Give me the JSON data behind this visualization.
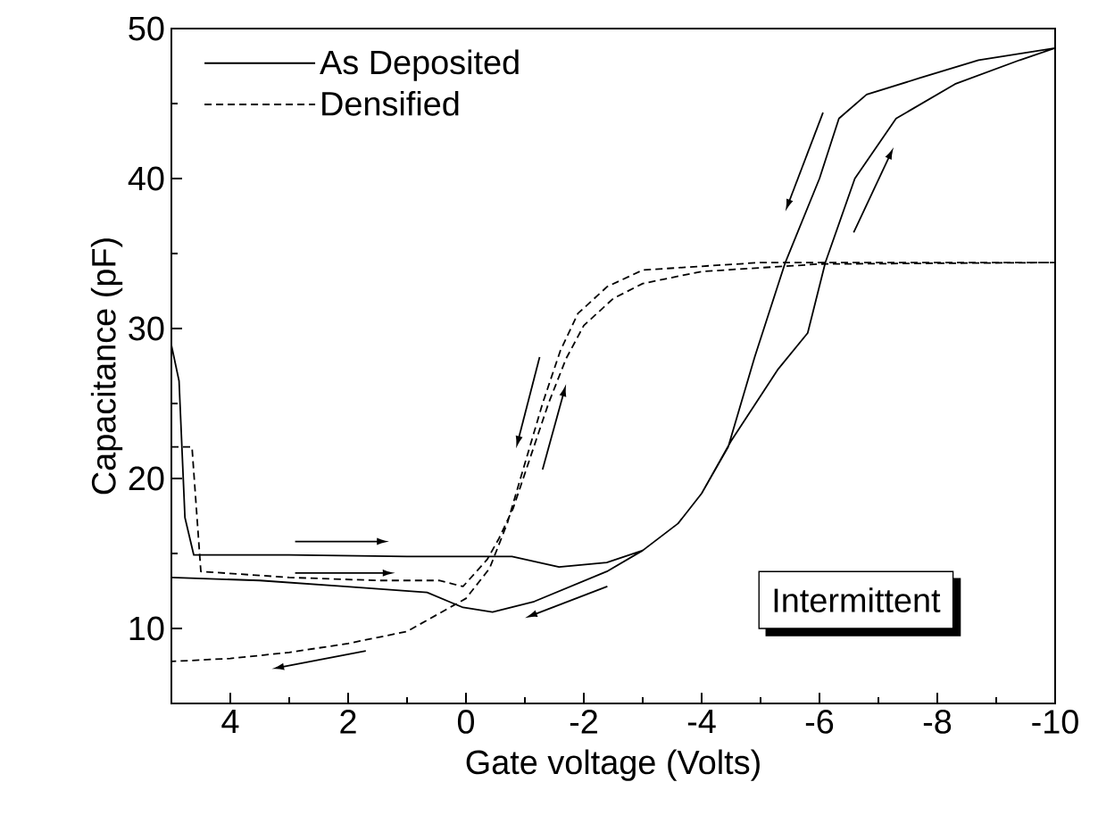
{
  "chart_data": {
    "type": "line",
    "xlabel": "Gate voltage (Volts)",
    "ylabel": "Capacitance (pF)",
    "xlim": [
      5,
      -10
    ],
    "xticks": [
      4,
      2,
      0,
      -2,
      -4,
      -6,
      -8,
      -10
    ],
    "ylim": [
      5,
      50
    ],
    "yticks": [
      10,
      20,
      30,
      40,
      50
    ],
    "legend": "top left",
    "grid": false,
    "marker": "none",
    "annotations": [
      "Intermittent"
    ],
    "series": [
      {
        "name": "As Deposited",
        "color": "#000000",
        "line_style": "solid",
        "x": [
          5,
          4.87,
          4.77,
          4.62,
          3,
          1,
          -0.78,
          -1.58,
          -2.39,
          -3,
          -3.6,
          -4,
          -4.5,
          -5.3,
          -5.8,
          -6.1,
          -6.6,
          -7.3,
          -8.3,
          -9.4,
          -10,
          -8.7,
          -7.7,
          -6.8,
          -6.33,
          -6.0,
          -5.42,
          -4.9,
          -4.45,
          -4.0,
          -3.6,
          -3.0,
          -2.39,
          -1.16,
          -0.45,
          0.05,
          0.66,
          2.07,
          3.5,
          5
        ],
        "values": [
          28.9,
          26.5,
          17.4,
          14.9,
          14.9,
          14.8,
          14.8,
          14.1,
          14.4,
          15.2,
          17,
          19,
          22.5,
          27.3,
          29.7,
          34.4,
          40,
          44,
          46.3,
          47.9,
          48.7,
          47.9,
          46.7,
          45.6,
          44,
          40,
          34.4,
          28.1,
          22.1,
          19,
          17,
          15.2,
          13.8,
          11.8,
          11.1,
          11.4,
          12.4,
          12.8,
          13.2,
          13.4
        ]
      },
      {
        "name": "Densified",
        "color": "#000000",
        "line_style": "dashed",
        "x": [
          5,
          4.65,
          4.5,
          3,
          1.5,
          0.46,
          0.05,
          -0.36,
          -0.56,
          -0.8,
          -1.1,
          -1.4,
          -1.7,
          -2.0,
          -2.5,
          -3,
          -4,
          -6,
          -10,
          -5,
          -3,
          -2.4,
          -1.9,
          -1.6,
          -1.3,
          -1.0,
          -0.7,
          -0.4,
          0,
          1,
          2,
          3,
          4,
          5
        ],
        "values": [
          22.1,
          22.1,
          13.8,
          13.4,
          13.2,
          13.2,
          12.8,
          14.6,
          16,
          18,
          21.5,
          25,
          28,
          30.2,
          32,
          33,
          33.8,
          34.3,
          34.4,
          34.4,
          33.9,
          32.8,
          31,
          28.5,
          25,
          21,
          17,
          14,
          12,
          9.8,
          9,
          8.4,
          8,
          7.8
        ]
      }
    ]
  }
}
